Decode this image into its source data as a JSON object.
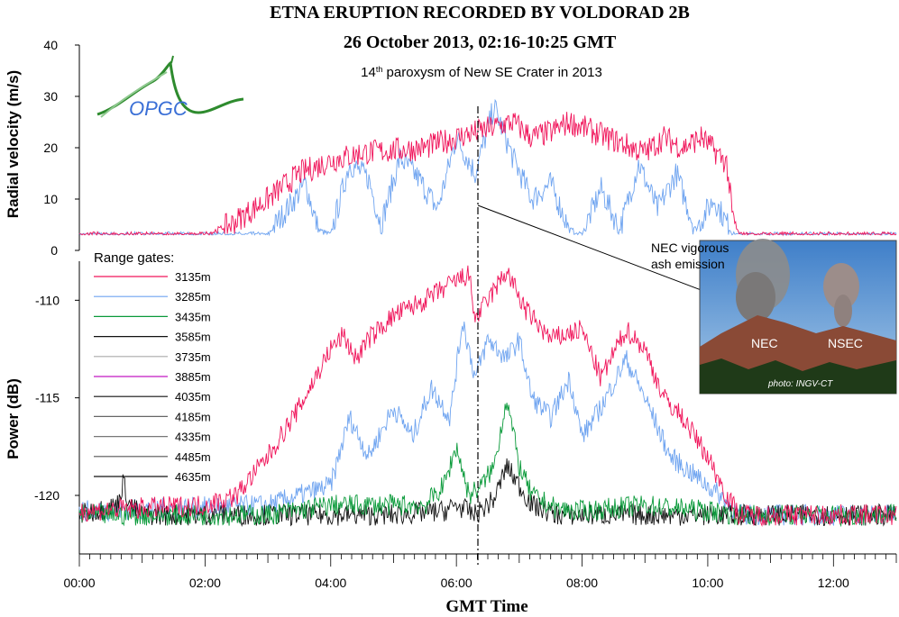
{
  "title": "ETNA ERUPTION RECORDED BY VOLDORAD 2B",
  "subtitle": "26 October 2013, 02:16-10:25 GMT",
  "caption": {
    "ord": "14",
    "sup": "th",
    "rest": " paroxysm of New SE Crater in 2013"
  },
  "logo_text": "OPGC",
  "xlabel": "GMT Time",
  "x_ticks": [
    "00:00",
    "02:00",
    "04:00",
    "06:00",
    "08:00",
    "10:00",
    "12:00"
  ],
  "legend_title": "Range gates:",
  "photo": {
    "annotation_line1": "NEC vigorous",
    "annotation_line2": "ash emission",
    "label_nec": "NEC",
    "label_nsec": "NSEC",
    "credit": "photo: INGV-CT"
  },
  "colors": {
    "g3135": "#f0145a",
    "g3285": "#6fa4f0",
    "g3435": "#0a9a3a",
    "black": "#111111"
  },
  "chart_data": [
    {
      "type": "line",
      "ylabel": "Radial velocity (m/s)",
      "ylim": [
        0,
        40
      ],
      "y_ticks": [
        "0",
        "10",
        "20",
        "30",
        "40"
      ],
      "xlim_hours": [
        0,
        13
      ],
      "series": [
        {
          "name": "3135m",
          "color": "#f0145a",
          "x": [
            0,
            2.0,
            2.4,
            3.0,
            3.5,
            4.0,
            4.5,
            5.0,
            5.5,
            6.0,
            6.3,
            6.6,
            6.9,
            7.2,
            7.5,
            7.8,
            8.2,
            8.6,
            9.0,
            9.3,
            9.6,
            9.9,
            10.3,
            10.4,
            10.5,
            13
          ],
          "y": [
            3,
            3,
            5,
            10,
            15,
            17.5,
            19,
            19.5,
            20,
            22,
            23,
            24,
            25,
            22,
            23,
            25,
            23,
            21,
            19,
            22,
            20,
            22,
            17,
            6,
            3,
            3
          ]
        },
        {
          "name": "3285m",
          "color": "#6fa4f0",
          "x": [
            0,
            3.0,
            3.3,
            3.6,
            3.8,
            4.0,
            4.3,
            4.6,
            4.8,
            5.1,
            5.4,
            5.7,
            6.0,
            6.3,
            6.6,
            6.9,
            7.2,
            7.5,
            7.8,
            8.0,
            8.3,
            8.6,
            8.9,
            9.2,
            9.5,
            9.8,
            10.1,
            10.4,
            13
          ],
          "y": [
            3,
            3,
            8,
            13,
            4,
            3,
            17,
            14,
            5,
            18,
            14,
            8,
            22,
            15,
            28,
            18,
            10,
            13,
            4,
            3,
            12,
            4,
            17,
            8,
            15,
            4,
            10,
            3,
            3
          ]
        }
      ]
    },
    {
      "type": "line",
      "ylabel": "Power (dB)",
      "ylim": [
        -123,
        -108
      ],
      "y_ticks": [
        "-110",
        "-115",
        "-120"
      ],
      "xlim_hours": [
        0,
        13
      ],
      "legend": [
        "3135m",
        "3285m",
        "3435m",
        "3585m",
        "3735m",
        "3885m",
        "4035m",
        "4185m",
        "4335m",
        "4485m",
        "4635m"
      ],
      "series": [
        {
          "name": "3135m",
          "color": "#f0145a",
          "x": [
            0,
            2.0,
            2.5,
            3.0,
            3.5,
            4.0,
            4.2,
            4.4,
            4.6,
            5.0,
            5.5,
            6.0,
            6.2,
            6.3,
            6.5,
            6.8,
            7.1,
            7.5,
            8.0,
            8.3,
            8.7,
            9.0,
            9.3,
            9.6,
            10.0,
            10.3,
            10.5,
            13
          ],
          "y": [
            -120.8,
            -120.5,
            -120,
            -118,
            -115.5,
            -112.5,
            -111.8,
            -113,
            -112,
            -110.8,
            -110,
            -109,
            -108.7,
            -111,
            -110,
            -108.5,
            -110.5,
            -112,
            -111.5,
            -114,
            -111.5,
            -112.5,
            -115,
            -116,
            -118,
            -120,
            -121,
            -121
          ]
        },
        {
          "name": "3285m",
          "color": "#6fa4f0",
          "x": [
            0,
            3.0,
            3.5,
            4.0,
            4.3,
            4.6,
            5.0,
            5.3,
            5.6,
            5.9,
            6.1,
            6.3,
            6.5,
            6.8,
            7.0,
            7.2,
            7.5,
            7.8,
            8.0,
            8.3,
            8.7,
            9.0,
            9.4,
            9.8,
            10.2,
            10.5,
            13
          ],
          "y": [
            -120.8,
            -120.5,
            -120,
            -119.5,
            -116,
            -118,
            -115.5,
            -117,
            -114.5,
            -116,
            -111,
            -114,
            -112,
            -113,
            -112,
            -115,
            -116,
            -114,
            -117,
            -115.5,
            -113,
            -115,
            -118,
            -119,
            -120,
            -121,
            -121
          ]
        },
        {
          "name": "3435m",
          "color": "#0a9a3a",
          "x": [
            0,
            3.0,
            4.0,
            5.0,
            5.5,
            5.8,
            6.0,
            6.2,
            6.4,
            6.6,
            6.8,
            7.0,
            7.2,
            7.6,
            8.0,
            9.0,
            10.0,
            10.5,
            13
          ],
          "y": [
            -121,
            -121,
            -120.5,
            -120.5,
            -120.5,
            -119.5,
            -117.5,
            -120,
            -119.5,
            -118.5,
            -115,
            -118.5,
            -120,
            -120.7,
            -120.8,
            -120.5,
            -120.8,
            -121,
            -121
          ]
        },
        {
          "name": "3585m",
          "color": "#111111",
          "x": [
            0,
            0.6,
            0.7,
            0.8,
            1.0,
            3.0,
            5.0,
            5.8,
            6.0,
            6.3,
            6.6,
            6.8,
            7.0,
            7.2,
            7.6,
            10.0,
            13
          ],
          "y": [
            -121,
            -120.5,
            -119.3,
            -120.5,
            -121,
            -121,
            -121,
            -120.8,
            -120.5,
            -121,
            -120.2,
            -118.5,
            -119.5,
            -120.5,
            -121,
            -121,
            -121
          ]
        }
      ]
    }
  ]
}
